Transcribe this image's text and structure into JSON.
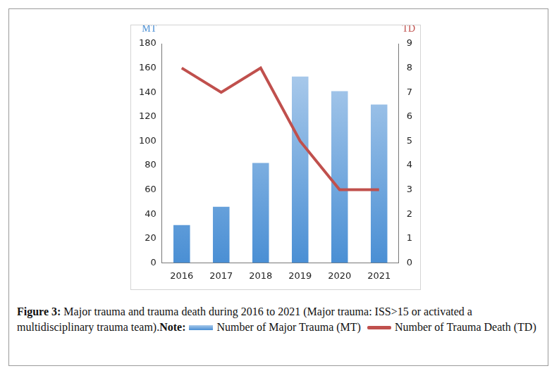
{
  "chart_data": {
    "type": "bar",
    "title": "Figure 3:",
    "subtitle": "Major trauma and trauma death during 2016 to 2021 (Major trauma: ISS>15 or activated a multidisciplinary trauma team).",
    "annotations": [
      "Note:"
    ],
    "y_label": "MT",
    "y2_label": "TD",
    "categories": [
      "2016",
      "2017",
      "2018",
      "2019",
      "2020",
      "2021"
    ],
    "series": [
      {
        "name": "Number of Major Trauma (MT)",
        "type": "bar",
        "color": "#4a8fd4",
        "values": [
          31,
          46,
          82,
          153,
          141,
          130
        ]
      },
      {
        "name": "Number of Trauma Death (TD)",
        "type": "line",
        "axis": "y2",
        "color": "#c0504d",
        "values": [
          8,
          7,
          8,
          5,
          3,
          3
        ]
      }
    ],
    "ylim": [
      0,
      180
    ],
    "yticks": [
      0,
      20,
      40,
      60,
      80,
      100,
      120,
      140,
      160,
      180
    ],
    "y2lim": [
      0,
      9
    ],
    "y2ticks": [
      0,
      1,
      2,
      3,
      4,
      5,
      6,
      7,
      8,
      9
    ],
    "grid": false,
    "legend": "bottom"
  }
}
